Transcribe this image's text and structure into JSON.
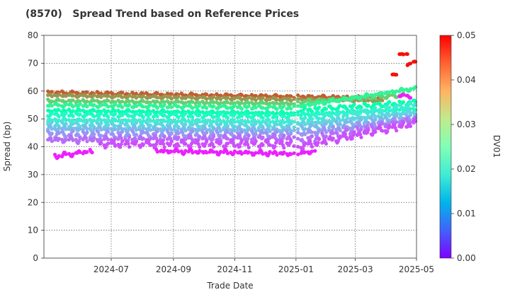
{
  "chart_data": {
    "type": "scatter",
    "title": "(8570)   Spread Trend based on Reference Prices",
    "xlabel": "Trade Date",
    "ylabel": "Spread (bp)",
    "colorbar_label": "DV01",
    "xlim": [
      "2024-04-25",
      "2025-05-01"
    ],
    "ylim": [
      0,
      80
    ],
    "x_ticks": [
      "2024-07-01",
      "2024-09-01",
      "2024-11-01",
      "2025-01-01",
      "2025-03-01",
      "2025-05-01"
    ],
    "x_tick_labels": [
      "2024-07",
      "2024-09",
      "2024-11",
      "2025-01",
      "2025-03",
      "2025-05"
    ],
    "y_ticks": [
      0,
      10,
      20,
      30,
      40,
      50,
      60,
      70,
      80
    ],
    "colorbar_range": [
      0.0,
      0.05
    ],
    "colorbar_ticks": [
      "0.00",
      "0.01",
      "0.02",
      "0.03",
      "0.04",
      "0.05"
    ],
    "colormap": "rainbow",
    "grid": true,
    "series": [
      {
        "dv01": 0.044,
        "segments": [
          {
            "from": "2024-04-27",
            "to": "2024-12-30",
            "y0": 59.5,
            "y1": 58.0,
            "amp": 0.6
          },
          {
            "from": "2025-01-03",
            "to": "2025-03-28",
            "y0": 58.0,
            "y1": 57.5,
            "amp": 0.6
          }
        ]
      },
      {
        "dv01": 0.04,
        "segments": [
          {
            "from": "2024-04-27",
            "to": "2024-12-30",
            "y0": 58.5,
            "y1": 57.0,
            "amp": 0.5
          },
          {
            "from": "2025-01-03",
            "to": "2025-03-28",
            "y0": 57.0,
            "y1": 56.5,
            "amp": 0.5
          }
        ]
      },
      {
        "dv01": 0.035,
        "segments": [
          {
            "from": "2024-04-27",
            "to": "2024-12-30",
            "y0": 56.5,
            "y1": 55.5,
            "amp": 0.6
          },
          {
            "from": "2025-01-03",
            "to": "2025-04-18",
            "y0": 56.0,
            "y1": 58.5,
            "amp": 0.7
          }
        ]
      },
      {
        "dv01": 0.03,
        "segments": [
          {
            "from": "2024-04-27",
            "to": "2024-12-30",
            "y0": 55.0,
            "y1": 54.0,
            "amp": 0.6
          },
          {
            "from": "2025-01-03",
            "to": "2025-04-30",
            "y0": 54.5,
            "y1": 61.0,
            "amp": 0.7
          }
        ]
      },
      {
        "dv01": 0.026,
        "segments": [
          {
            "from": "2024-04-27",
            "to": "2024-12-30",
            "y0": 53.0,
            "y1": 52.0,
            "amp": 0.7
          },
          {
            "from": "2025-01-03",
            "to": "2025-04-30",
            "y0": 53.0,
            "y1": 56.0,
            "amp": 0.8
          }
        ]
      },
      {
        "dv01": 0.022,
        "segments": [
          {
            "from": "2024-04-27",
            "to": "2024-12-30",
            "y0": 51.5,
            "y1": 51.0,
            "amp": 0.7
          },
          {
            "from": "2025-01-03",
            "to": "2025-04-30",
            "y0": 51.5,
            "y1": 53.5,
            "amp": 0.8
          }
        ]
      },
      {
        "dv01": 0.019,
        "segments": [
          {
            "from": "2024-04-27",
            "to": "2024-12-30",
            "y0": 49.5,
            "y1": 49.0,
            "amp": 0.8
          },
          {
            "from": "2025-01-03",
            "to": "2025-04-30",
            "y0": 49.5,
            "y1": 55.0,
            "amp": 0.9
          }
        ]
      },
      {
        "dv01": 0.016,
        "segments": [
          {
            "from": "2024-04-27",
            "to": "2024-12-30",
            "y0": 48.0,
            "y1": 47.5,
            "amp": 0.9
          },
          {
            "from": "2025-01-03",
            "to": "2025-04-30",
            "y0": 48.0,
            "y1": 52.5,
            "amp": 0.9
          }
        ]
      },
      {
        "dv01": 0.013,
        "segments": [
          {
            "from": "2024-04-27",
            "to": "2024-12-30",
            "y0": 46.5,
            "y1": 46.0,
            "amp": 1.0
          },
          {
            "from": "2025-01-03",
            "to": "2025-04-30",
            "y0": 46.5,
            "y1": 51.0,
            "amp": 1.0
          }
        ]
      },
      {
        "dv01": 0.01,
        "segments": [
          {
            "from": "2024-04-27",
            "to": "2024-12-30",
            "y0": 44.5,
            "y1": 44.5,
            "amp": 1.2
          },
          {
            "from": "2025-01-03",
            "to": "2025-04-30",
            "y0": 44.5,
            "y1": 50.0,
            "amp": 1.2
          }
        ]
      },
      {
        "dv01": 0.007,
        "segments": [
          {
            "from": "2024-04-27",
            "to": "2024-12-30",
            "y0": 42.5,
            "y1": 43.0,
            "amp": 1.4
          },
          {
            "from": "2025-01-03",
            "to": "2025-04-30",
            "y0": 42.0,
            "y1": 49.5,
            "amp": 1.4
          }
        ]
      },
      {
        "dv01": 0.005,
        "segments": [
          {
            "from": "2024-06-20",
            "to": "2024-12-30",
            "y0": 41.0,
            "y1": 41.0,
            "amp": 1.5
          },
          {
            "from": "2025-01-03",
            "to": "2025-04-30",
            "y0": 40.0,
            "y1": 48.5,
            "amp": 1.5
          }
        ]
      },
      {
        "dv01": 0.002,
        "segments": [
          {
            "from": "2024-05-05",
            "to": "2024-06-12",
            "y0": 36.5,
            "y1": 38.5,
            "amp": 1.0
          },
          {
            "from": "2024-08-15",
            "to": "2024-12-30",
            "y0": 38.5,
            "y1": 37.5,
            "amp": 1.0
          },
          {
            "from": "2025-01-03",
            "to": "2025-01-20",
            "y0": 37.5,
            "y1": 38.5,
            "amp": 0.8
          },
          {
            "from": "2025-04-14",
            "to": "2025-04-25",
            "y0": 58.5,
            "y1": 58.0,
            "amp": 0.5
          }
        ]
      },
      {
        "dv01": 0.049,
        "segments": [
          {
            "from": "2025-04-05",
            "to": "2025-04-12",
            "y0": 66.0,
            "y1": 66.0,
            "amp": 0.2
          },
          {
            "from": "2025-04-14",
            "to": "2025-04-22",
            "y0": 73.5,
            "y1": 73.0,
            "amp": 0.3
          },
          {
            "from": "2025-04-22",
            "to": "2025-04-30",
            "y0": 69.5,
            "y1": 70.5,
            "amp": 0.3
          }
        ]
      }
    ]
  }
}
